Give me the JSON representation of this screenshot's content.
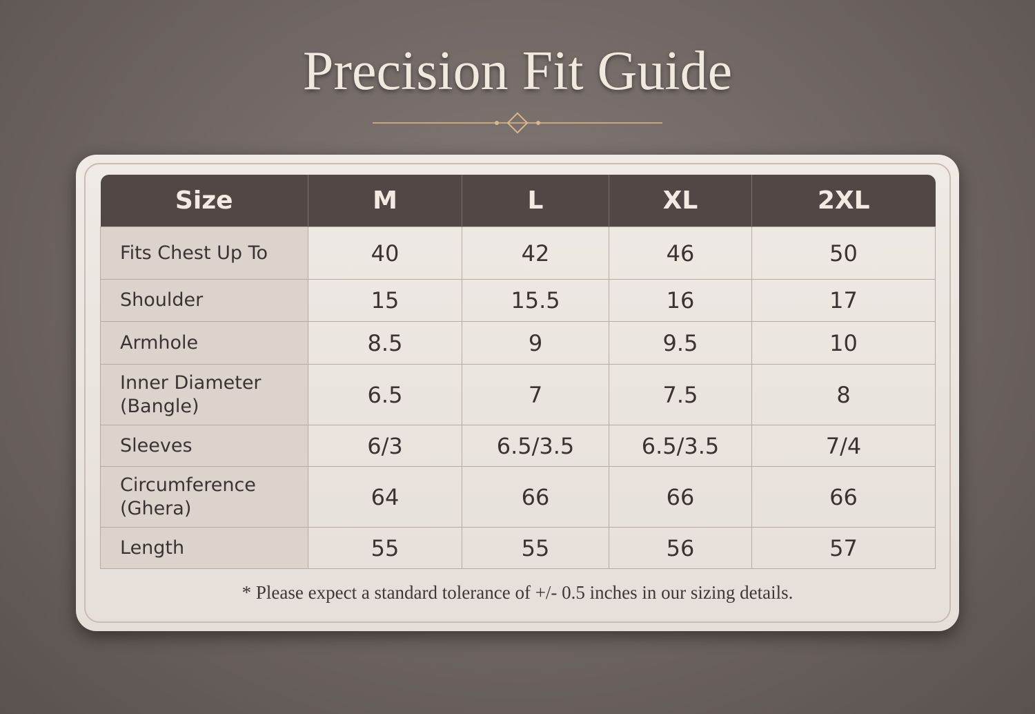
{
  "header": {
    "title": "Precision Fit Guide"
  },
  "table": {
    "header": [
      "Size",
      "M",
      "L",
      "XL",
      "2XL"
    ],
    "rows": [
      [
        "Fits Chest Up To",
        "40",
        "42",
        "46",
        "50"
      ],
      [
        "Shoulder",
        "15",
        "15.5",
        "16",
        "17"
      ],
      [
        "Armhole",
        "8.5",
        "9",
        "9.5",
        "10"
      ],
      [
        "Inner Diameter (Bangle)",
        "6.5",
        "7",
        "7.5",
        "8"
      ],
      [
        "Sleeves",
        "6/3",
        "6.5/3.5",
        "6.5/3.5",
        "7/4"
      ],
      [
        "Circumference (Ghera)",
        "64",
        "66",
        "66",
        "66"
      ],
      [
        "Length",
        "55",
        "55",
        "56",
        "57"
      ]
    ]
  },
  "footnote": "* Please expect a standard tolerance of +/- 0.5 inches in our sizing details."
}
